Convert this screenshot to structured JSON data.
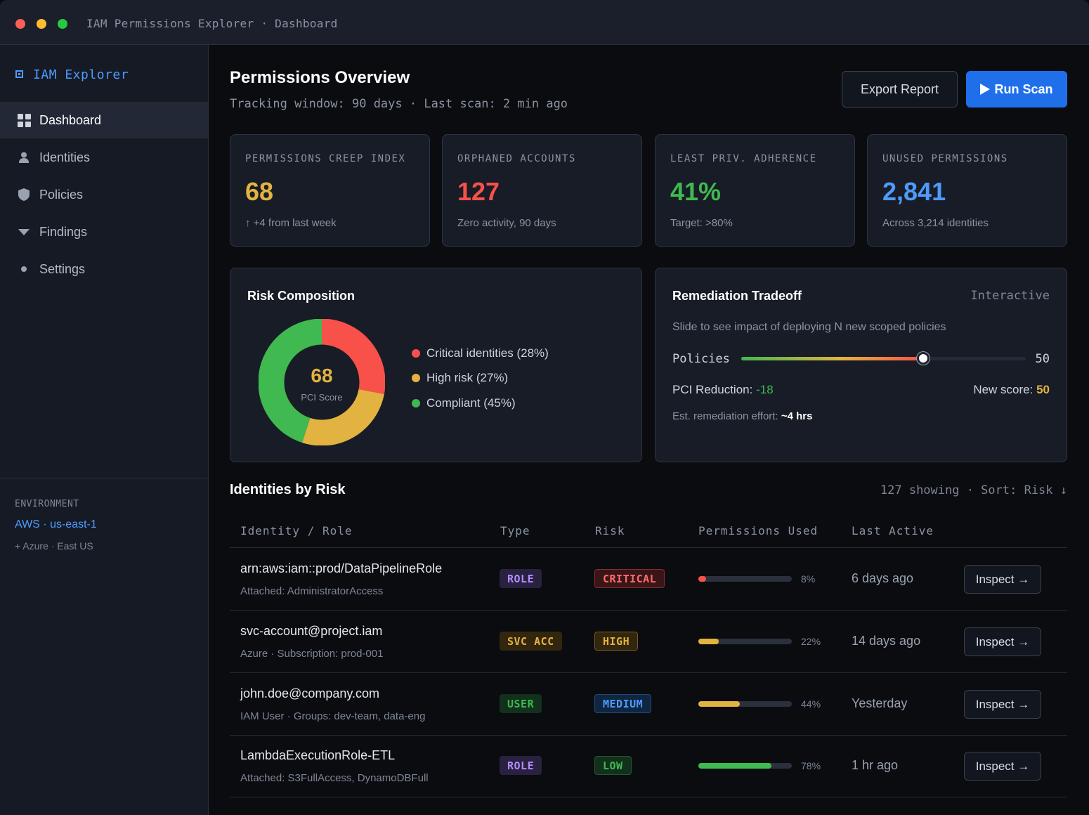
{
  "window": {
    "title": "IAM Permissions Explorer · Dashboard"
  },
  "sidebar": {
    "brand": "IAM Explorer",
    "items": [
      {
        "label": "Dashboard",
        "icon": "grid-icon",
        "active": true
      },
      {
        "label": "Identities",
        "icon": "user-icon"
      },
      {
        "label": "Policies",
        "icon": "shield-icon"
      },
      {
        "label": "Findings",
        "icon": "funnel-icon"
      },
      {
        "label": "Settings",
        "icon": "dot-icon"
      }
    ],
    "environment": {
      "label": "ENVIRONMENT",
      "primary": "AWS · us-east-1",
      "secondary": "+ Azure · East US"
    }
  },
  "header": {
    "title": "Permissions Overview",
    "subtitle": "Tracking window: 90 days · Last scan: 2 min ago",
    "export_label": "Export Report",
    "run_label": "Run Scan"
  },
  "kpis": [
    {
      "label": "PERMISSIONS CREEP INDEX",
      "value": "68",
      "sub": "↑ +4 from last week",
      "color": "#e3b341"
    },
    {
      "label": "ORPHANED ACCOUNTS",
      "value": "127",
      "sub": "Zero activity, 90 days",
      "color": "#f85149"
    },
    {
      "label": "LEAST PRIV. ADHERENCE",
      "value": "41%",
      "sub": "Target: >80%",
      "color": "#3fb950"
    },
    {
      "label": "UNUSED PERMISSIONS",
      "value": "2,841",
      "sub": "Across 3,214 identities",
      "color": "#4d9bff"
    }
  ],
  "risk_composition": {
    "title": "Risk Composition",
    "score": "68",
    "score_label": "PCI Score",
    "segments": [
      {
        "label": "Critical identities (28%)",
        "percent": 28,
        "color": "#f85149"
      },
      {
        "label": "High risk (27%)",
        "percent": 27,
        "color": "#e3b341"
      },
      {
        "label": "Compliant (45%)",
        "percent": 45,
        "color": "#3fb950"
      }
    ]
  },
  "tradeoff": {
    "title": "Remediation Tradeoff",
    "tag": "Interactive",
    "description": "Slide to see impact of deploying N new scoped policies",
    "slider_label": "Policies",
    "slider_value": "50",
    "slider_fraction": 0.64,
    "pci_label": "PCI Reduction:",
    "pci_value": "-18",
    "new_score_label": "New score:",
    "new_score_value": "50",
    "effort_label": "Est. remediation effort:",
    "effort_value": "~4 hrs"
  },
  "table": {
    "title": "Identities by Risk",
    "meta": "127 showing · Sort: Risk ↓",
    "columns": [
      "Identity / Role",
      "Type",
      "Risk",
      "Permissions Used",
      "Last Active"
    ],
    "inspect_label": "Inspect →",
    "rows": [
      {
        "name": "arn:aws:iam::prod/DataPipelineRole",
        "sub": "Attached: AdministratorAccess",
        "type": "ROLE",
        "risk": "CRITICAL",
        "perm": 8,
        "perm_label": "8%",
        "last": "6 days ago"
      },
      {
        "name": "svc-account@project.iam",
        "sub": "Azure · Subscription: prod-001",
        "type": "SVC ACC",
        "risk": "HIGH",
        "perm": 22,
        "perm_label": "22%",
        "last": "14 days ago"
      },
      {
        "name": "john.doe@company.com",
        "sub": "IAM User · Groups: dev-team, data-eng",
        "type": "USER",
        "risk": "MEDIUM",
        "perm": 44,
        "perm_label": "44%",
        "last": "Yesterday"
      },
      {
        "name": "LambdaExecutionRole-ETL",
        "sub": "Attached: S3FullAccess, DynamoDBFull",
        "type": "ROLE",
        "risk": "LOW",
        "perm": 78,
        "perm_label": "78%",
        "last": "1 hr ago"
      }
    ]
  }
}
